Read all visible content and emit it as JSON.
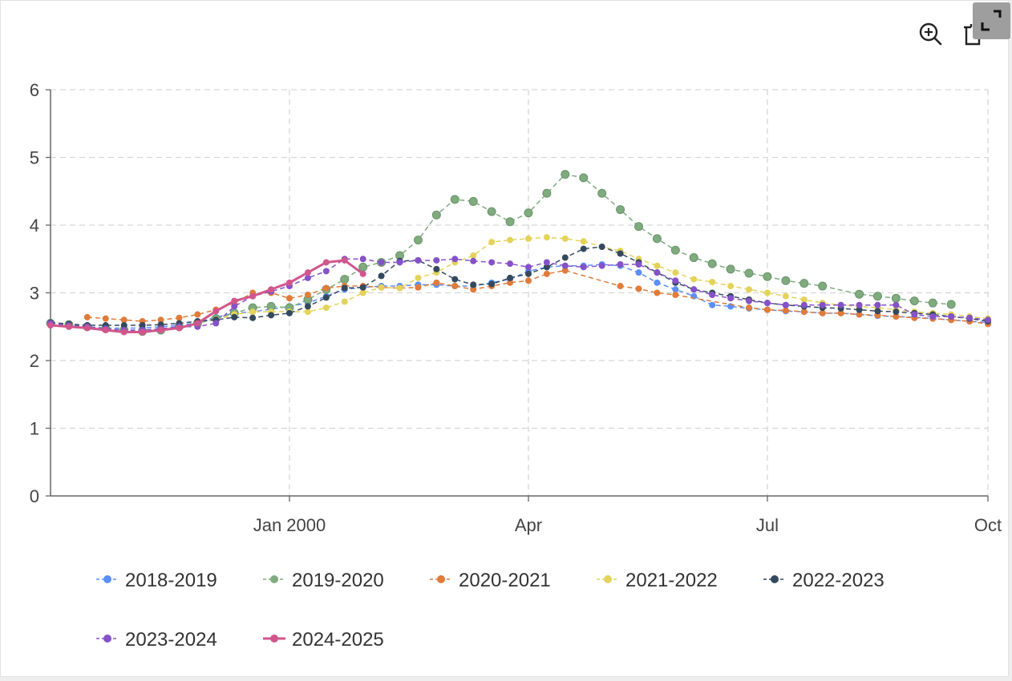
{
  "toolbar": {
    "zoom_icon": "zoom-in-icon",
    "restore_icon": "restore-icon",
    "expand_icon": "expand-icon"
  },
  "chart_data": {
    "type": "line",
    "title": "",
    "xlabel": "",
    "ylabel": "",
    "ylim": [
      0,
      6
    ],
    "y_ticks": [
      "0",
      "1",
      "2",
      "3",
      "4",
      "5",
      "6"
    ],
    "x_ticks": [
      "Jan 2000",
      "Apr",
      "Jul",
      "Oct"
    ],
    "grid": true,
    "legend_position": "bottom",
    "x_axis": "weekly, Oct 1999 – Oct 2000",
    "series": [
      {
        "name": "2018-2019",
        "color": "#5b8ff9",
        "style": "dashed",
        "values": [
          [
            0,
            2.52
          ],
          [
            1,
            2.5
          ],
          [
            2,
            2.5
          ],
          [
            3,
            2.48
          ],
          [
            4,
            2.48
          ],
          [
            5,
            2.48
          ],
          [
            6,
            2.5
          ],
          [
            7,
            2.52
          ],
          [
            8,
            2.56
          ],
          [
            9,
            2.64
          ],
          [
            10,
            2.7
          ],
          [
            11,
            2.72
          ],
          [
            12,
            2.76
          ],
          [
            13,
            2.8
          ],
          [
            14,
            2.85
          ],
          [
            15,
            2.95
          ],
          [
            16,
            3.05
          ],
          [
            17,
            3.08
          ],
          [
            18,
            3.1
          ],
          [
            19,
            3.1
          ],
          [
            20,
            3.12
          ],
          [
            21,
            3.12
          ],
          [
            22,
            3.1
          ],
          [
            23,
            3.1
          ],
          [
            24,
            3.15
          ],
          [
            25,
            3.2
          ],
          [
            26,
            3.32
          ],
          [
            27,
            3.38
          ],
          [
            28,
            3.4
          ],
          [
            29,
            3.4
          ],
          [
            30,
            3.42
          ],
          [
            31,
            3.4
          ],
          [
            32,
            3.3
          ],
          [
            33,
            3.15
          ],
          [
            34,
            3.05
          ],
          [
            35,
            2.95
          ],
          [
            36,
            2.82
          ],
          [
            37,
            2.8
          ],
          [
            38,
            2.77
          ],
          [
            39,
            2.75
          ],
          [
            40,
            2.73
          ],
          [
            41,
            2.72
          ],
          [
            42,
            2.7
          ],
          [
            43,
            2.7
          ],
          [
            44,
            2.68
          ],
          [
            45,
            2.66
          ],
          [
            46,
            2.65
          ],
          [
            47,
            2.64
          ],
          [
            48,
            2.62
          ],
          [
            49,
            2.6
          ],
          [
            50,
            2.58
          ],
          [
            51,
            2.56
          ]
        ]
      },
      {
        "name": "2019-2020",
        "color": "#7fab7f",
        "style": "dashed",
        "values": [
          [
            0,
            2.55
          ],
          [
            1,
            2.53
          ],
          [
            2,
            2.5
          ],
          [
            3,
            2.47
          ],
          [
            4,
            2.45
          ],
          [
            5,
            2.43
          ],
          [
            6,
            2.45
          ],
          [
            7,
            2.5
          ],
          [
            8,
            2.55
          ],
          [
            9,
            2.62
          ],
          [
            10,
            2.7
          ],
          [
            11,
            2.78
          ],
          [
            12,
            2.8
          ],
          [
            13,
            2.78
          ],
          [
            14,
            2.9
          ],
          [
            15,
            3.05
          ],
          [
            16,
            3.2
          ],
          [
            17,
            3.38
          ],
          [
            18,
            3.45
          ],
          [
            19,
            3.55
          ],
          [
            20,
            3.78
          ],
          [
            21,
            4.15
          ],
          [
            22,
            4.38
          ],
          [
            23,
            4.35
          ],
          [
            24,
            4.2
          ],
          [
            25,
            4.05
          ],
          [
            26,
            4.18
          ],
          [
            27,
            4.47
          ],
          [
            28,
            4.75
          ],
          [
            29,
            4.7
          ],
          [
            30,
            4.47
          ],
          [
            31,
            4.23
          ],
          [
            32,
            3.98
          ],
          [
            33,
            3.8
          ],
          [
            34,
            3.63
          ],
          [
            35,
            3.52
          ],
          [
            36,
            3.43
          ],
          [
            37,
            3.35
          ],
          [
            38,
            3.29
          ],
          [
            39,
            3.24
          ],
          [
            40,
            3.18
          ],
          [
            41,
            3.14
          ],
          [
            42,
            3.1
          ],
          [
            44,
            2.98
          ],
          [
            45,
            2.95
          ],
          [
            46,
            2.92
          ],
          [
            47,
            2.88
          ],
          [
            48,
            2.85
          ],
          [
            49,
            2.83
          ]
        ]
      },
      {
        "name": "2020-2021",
        "color": "#e07b39",
        "style": "dashed",
        "values": [
          [
            2,
            2.64
          ],
          [
            3,
            2.62
          ],
          [
            4,
            2.6
          ],
          [
            5,
            2.58
          ],
          [
            6,
            2.6
          ],
          [
            7,
            2.63
          ],
          [
            8,
            2.68
          ],
          [
            9,
            2.75
          ],
          [
            10,
            2.85
          ],
          [
            11,
            3.0
          ],
          [
            12,
            3.0
          ],
          [
            13,
            2.92
          ],
          [
            14,
            2.97
          ],
          [
            15,
            3.07
          ],
          [
            16,
            3.1
          ],
          [
            17,
            3.1
          ],
          [
            18,
            3.08
          ],
          [
            19,
            3.07
          ],
          [
            20,
            3.08
          ],
          [
            21,
            3.15
          ],
          [
            22,
            3.1
          ],
          [
            23,
            3.05
          ],
          [
            24,
            3.1
          ],
          [
            25,
            3.15
          ],
          [
            26,
            3.18
          ],
          [
            27,
            3.28
          ],
          [
            28,
            3.33
          ],
          [
            31,
            3.1
          ],
          [
            32,
            3.06
          ],
          [
            33,
            3.0
          ],
          [
            34,
            2.97
          ],
          [
            38,
            2.78
          ],
          [
            39,
            2.75
          ],
          [
            40,
            2.74
          ],
          [
            41,
            2.72
          ],
          [
            42,
            2.7
          ],
          [
            43,
            2.7
          ],
          [
            44,
            2.68
          ],
          [
            45,
            2.67
          ],
          [
            46,
            2.65
          ],
          [
            47,
            2.63
          ],
          [
            48,
            2.62
          ],
          [
            49,
            2.6
          ],
          [
            50,
            2.58
          ],
          [
            51,
            2.54
          ]
        ]
      },
      {
        "name": "2021-2022",
        "color": "#e4d35a",
        "style": "dashed",
        "values": [
          [
            9,
            2.6
          ],
          [
            10,
            2.68
          ],
          [
            11,
            2.72
          ],
          [
            12,
            2.72
          ],
          [
            13,
            2.72
          ],
          [
            14,
            2.72
          ],
          [
            15,
            2.78
          ],
          [
            16,
            2.87
          ],
          [
            17,
            3.0
          ],
          [
            18,
            3.08
          ],
          [
            19,
            3.07
          ],
          [
            20,
            3.22
          ],
          [
            21,
            3.3
          ],
          [
            22,
            3.45
          ],
          [
            23,
            3.55
          ],
          [
            24,
            3.75
          ],
          [
            25,
            3.78
          ],
          [
            26,
            3.8
          ],
          [
            27,
            3.82
          ],
          [
            28,
            3.8
          ],
          [
            29,
            3.76
          ],
          [
            30,
            3.68
          ],
          [
            31,
            3.62
          ],
          [
            32,
            3.5
          ],
          [
            33,
            3.4
          ],
          [
            34,
            3.3
          ],
          [
            35,
            3.2
          ],
          [
            36,
            3.16
          ],
          [
            37,
            3.1
          ],
          [
            38,
            3.05
          ],
          [
            39,
            3.0
          ],
          [
            40,
            2.95
          ],
          [
            41,
            2.9
          ],
          [
            42,
            2.85
          ],
          [
            43,
            2.82
          ],
          [
            44,
            2.8
          ],
          [
            45,
            2.78
          ],
          [
            46,
            2.75
          ],
          [
            47,
            2.72
          ],
          [
            48,
            2.7
          ],
          [
            49,
            2.68
          ],
          [
            50,
            2.65
          ],
          [
            51,
            2.62
          ]
        ]
      },
      {
        "name": "2022-2023",
        "color": "#34495e",
        "style": "dashed",
        "values": [
          [
            0,
            2.56
          ],
          [
            1,
            2.54
          ],
          [
            2,
            2.52
          ],
          [
            3,
            2.52
          ],
          [
            4,
            2.52
          ],
          [
            5,
            2.52
          ],
          [
            6,
            2.53
          ],
          [
            7,
            2.55
          ],
          [
            8,
            2.58
          ],
          [
            9,
            2.6
          ],
          [
            10,
            2.64
          ],
          [
            11,
            2.63
          ],
          [
            12,
            2.67
          ],
          [
            13,
            2.7
          ],
          [
            14,
            2.8
          ],
          [
            15,
            2.93
          ],
          [
            16,
            3.07
          ],
          [
            17,
            3.08
          ],
          [
            18,
            3.25
          ],
          [
            19,
            3.47
          ],
          [
            20,
            3.48
          ],
          [
            21,
            3.35
          ],
          [
            22,
            3.2
          ],
          [
            23,
            3.12
          ],
          [
            24,
            3.13
          ],
          [
            25,
            3.22
          ],
          [
            26,
            3.28
          ],
          [
            27,
            3.38
          ],
          [
            28,
            3.52
          ],
          [
            29,
            3.65
          ],
          [
            30,
            3.68
          ],
          [
            31,
            3.58
          ],
          [
            32,
            3.45
          ],
          [
            33,
            3.3
          ],
          [
            34,
            3.15
          ],
          [
            35,
            3.05
          ],
          [
            36,
            3.0
          ],
          [
            37,
            2.95
          ],
          [
            38,
            2.9
          ],
          [
            39,
            2.85
          ],
          [
            40,
            2.82
          ],
          [
            41,
            2.8
          ],
          [
            42,
            2.78
          ],
          [
            43,
            2.77
          ],
          [
            44,
            2.75
          ],
          [
            45,
            2.73
          ],
          [
            46,
            2.72
          ],
          [
            47,
            2.7
          ],
          [
            48,
            2.68
          ],
          [
            49,
            2.65
          ],
          [
            50,
            2.62
          ],
          [
            51,
            2.58
          ]
        ]
      },
      {
        "name": "2023-2024",
        "color": "#8552c8",
        "style": "dashed",
        "values": [
          [
            0,
            2.55
          ],
          [
            1,
            2.52
          ],
          [
            2,
            2.5
          ],
          [
            3,
            2.47
          ],
          [
            4,
            2.45
          ],
          [
            5,
            2.45
          ],
          [
            6,
            2.47
          ],
          [
            7,
            2.5
          ],
          [
            8,
            2.5
          ],
          [
            9,
            2.55
          ],
          [
            10,
            2.8
          ],
          [
            11,
            2.95
          ],
          [
            12,
            3.02
          ],
          [
            13,
            3.1
          ],
          [
            14,
            3.22
          ],
          [
            15,
            3.32
          ],
          [
            16,
            3.5
          ],
          [
            17,
            3.5
          ],
          [
            18,
            3.45
          ],
          [
            19,
            3.45
          ],
          [
            20,
            3.48
          ],
          [
            21,
            3.48
          ],
          [
            22,
            3.5
          ],
          [
            23,
            3.47
          ],
          [
            24,
            3.45
          ],
          [
            25,
            3.43
          ],
          [
            26,
            3.38
          ],
          [
            27,
            3.45
          ],
          [
            28,
            3.4
          ],
          [
            29,
            3.38
          ],
          [
            30,
            3.4
          ],
          [
            31,
            3.42
          ],
          [
            32,
            3.42
          ],
          [
            33,
            3.3
          ],
          [
            34,
            3.18
          ],
          [
            35,
            3.05
          ],
          [
            36,
            2.97
          ],
          [
            37,
            2.92
          ],
          [
            38,
            2.88
          ],
          [
            39,
            2.85
          ],
          [
            40,
            2.82
          ],
          [
            41,
            2.82
          ],
          [
            42,
            2.82
          ],
          [
            43,
            2.82
          ],
          [
            44,
            2.82
          ],
          [
            45,
            2.82
          ],
          [
            46,
            2.82
          ],
          [
            47,
            2.68
          ],
          [
            48,
            2.65
          ],
          [
            49,
            2.65
          ],
          [
            50,
            2.63
          ],
          [
            51,
            2.6
          ]
        ]
      },
      {
        "name": "2024-2025",
        "color": "#d1568c",
        "style": "solid",
        "values": [
          [
            0,
            2.52
          ],
          [
            1,
            2.5
          ],
          [
            2,
            2.48
          ],
          [
            3,
            2.45
          ],
          [
            4,
            2.42
          ],
          [
            5,
            2.42
          ],
          [
            6,
            2.45
          ],
          [
            7,
            2.48
          ],
          [
            8,
            2.55
          ],
          [
            9,
            2.73
          ],
          [
            10,
            2.88
          ],
          [
            11,
            2.95
          ],
          [
            12,
            3.05
          ],
          [
            13,
            3.15
          ],
          [
            14,
            3.3
          ],
          [
            15,
            3.45
          ],
          [
            16,
            3.48
          ],
          [
            17,
            3.28
          ]
        ]
      }
    ]
  }
}
